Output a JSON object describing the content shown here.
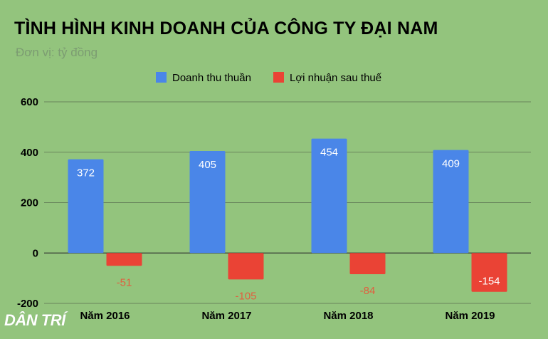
{
  "page": {
    "title": "TÌNH HÌNH KINH DOANH CỦA CÔNG TY ĐẠI NAM",
    "subtitle": "Đơn vị: tỷ đồng",
    "watermark": "DÂN TRÍ"
  },
  "chart_data": {
    "type": "bar",
    "title": "TÌNH HÌNH KINH DOANH CỦA CÔNG TY ĐẠI NAM",
    "subtitle": "Đơn vị: tỷ đồng",
    "xlabel": "",
    "ylabel": "",
    "categories": [
      "Năm 2016",
      "Năm 2017",
      "Năm 2018",
      "Năm 2019"
    ],
    "series": [
      {
        "name": "Doanh thu thuần",
        "values": [
          372,
          405,
          454,
          409
        ],
        "color": "#4a86e8",
        "label_color": "#ffffff"
      },
      {
        "name": "Lợi nhuận sau thuế",
        "values": [
          -51,
          -105,
          -84,
          -154
        ],
        "color": "#ea4335",
        "label_color": "#ffffff",
        "label_color_outside": "#e06040"
      }
    ],
    "ylim": [
      -200,
      600
    ],
    "yticks": [
      600,
      400,
      200,
      0,
      -200
    ],
    "grid": true,
    "legend": "top-center",
    "colors": {
      "background": "#93c47d",
      "gridline": "#2d2d2d",
      "axis_text": "#000000"
    }
  }
}
